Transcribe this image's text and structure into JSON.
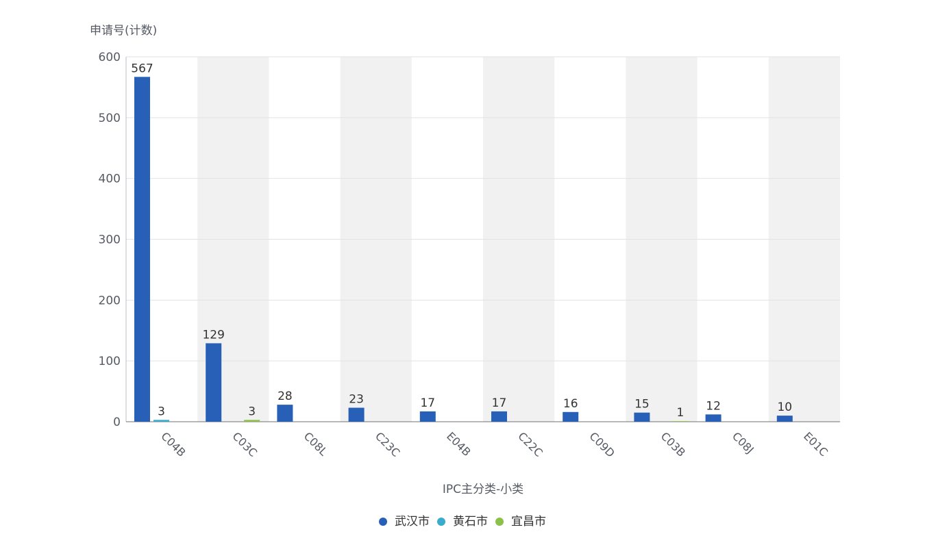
{
  "chart_data": {
    "type": "bar",
    "xlabel": "IPC主分类-小类",
    "ylabel": "申请号(计数)",
    "categories": [
      "C04B",
      "C03C",
      "C08L",
      "C23C",
      "E04B",
      "C22C",
      "C09D",
      "C03B",
      "C08J",
      "E01C"
    ],
    "series": [
      {
        "name": "武汉市",
        "color": "#2860b8",
        "values": [
          567,
          129,
          28,
          23,
          17,
          17,
          16,
          15,
          12,
          10
        ]
      },
      {
        "name": "黄石市",
        "color": "#3aaacd",
        "values": [
          3,
          null,
          null,
          null,
          null,
          null,
          null,
          null,
          null,
          null
        ]
      },
      {
        "name": "宜昌市",
        "color": "#8bc14a",
        "values": [
          null,
          3,
          null,
          null,
          null,
          null,
          null,
          1,
          null,
          null
        ]
      }
    ],
    "ylim": [
      0,
      600
    ],
    "yticks": [
      0,
      100,
      200,
      300,
      400,
      500,
      600
    ],
    "grid": true,
    "alternating_category_bands": true,
    "data_labels": true,
    "legend": "bottom-center"
  }
}
